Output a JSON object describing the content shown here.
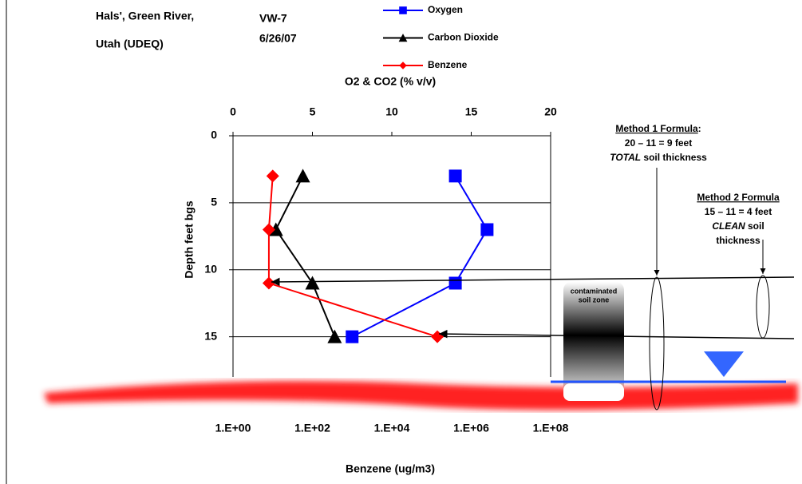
{
  "chart_data": {
    "type": "scatter",
    "title": [
      "Hals', Green River,",
      "Utah (UDEQ)"
    ],
    "well": "VW-7",
    "date": "6/26/07",
    "x_label": "O2 & CO2 (% v/v)",
    "x2_label": "Benzene (ug/m3)",
    "y_label": "Depth feet bgs",
    "xlim": [
      0,
      20
    ],
    "xticks": [
      0,
      5,
      10,
      15,
      20
    ],
    "x2lim": [
      1,
      100000000
    ],
    "x2_log": true,
    "x2ticks": [
      {
        "value": 1,
        "label": "1.E+00"
      },
      {
        "value": 100,
        "label": "1.E+02"
      },
      {
        "value": 10000,
        "label": "1.E+04"
      },
      {
        "value": 1000000,
        "label": "1.E+06"
      },
      {
        "value": 100000000,
        "label": "1.E+08"
      }
    ],
    "ylim": [
      0,
      18
    ],
    "yticks": [
      0,
      5,
      10,
      15
    ],
    "y_inverted": true,
    "grid": true,
    "depths": [
      3,
      7,
      11,
      15
    ],
    "series": [
      {
        "name": "Oxygen",
        "color": "#0000ff",
        "marker": "square",
        "values": [
          14.0,
          16.0,
          14.0,
          7.5
        ]
      },
      {
        "name": "Carbon Dioxide",
        "color": "#000000",
        "marker": "triangle",
        "values": [
          4.4,
          2.7,
          5.0,
          6.4
        ]
      },
      {
        "name": "Benzene",
        "color": "#ff0000",
        "marker": "diamond",
        "axis": "x2",
        "values": [
          10,
          8,
          8,
          140000
        ]
      }
    ],
    "annotations": {
      "zone": [
        "contaminated",
        "soil zone"
      ],
      "method1": [
        "Method 1 Formula",
        ":",
        "20 – 11 = 9 feet",
        "TOTAL",
        " soil thickness"
      ],
      "method2": [
        "Method 2 Formula",
        "15 – 11 = 4 feet",
        "CLEAN",
        " soil",
        "thickness"
      ]
    }
  }
}
